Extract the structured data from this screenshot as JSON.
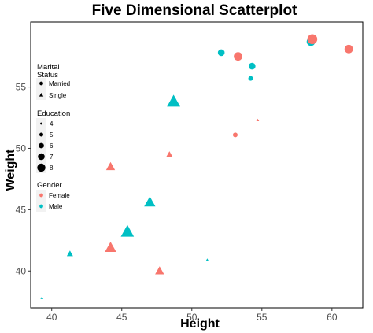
{
  "chart_data": {
    "type": "scatter",
    "title": "Five Dimensional Scatterplot",
    "xlabel": "Height",
    "ylabel": "Weight",
    "xlim": [
      38.5,
      62.2
    ],
    "ylim": [
      37.0,
      60.3
    ],
    "x_ticks": [
      40,
      45,
      50,
      55,
      60
    ],
    "y_ticks": [
      40,
      45,
      50,
      55
    ],
    "grid": false,
    "colors": {
      "Female": "#F8766D",
      "Male": "#00BFC4"
    },
    "legend": {
      "placement": "left",
      "marital": {
        "title_line1": "Marital",
        "title_line2": "Status",
        "items": [
          "Married",
          "Single"
        ]
      },
      "education": {
        "title": "Education",
        "items": [
          "4",
          "5",
          "6",
          "7",
          "8"
        ]
      },
      "gender": {
        "title": "Gender",
        "items": [
          "Female",
          "Male"
        ]
      }
    },
    "points": [
      {
        "x": 39.3,
        "y": 37.8,
        "gender": "Male",
        "status": "Single",
        "education": 4
      },
      {
        "x": 41.3,
        "y": 41.4,
        "gender": "Male",
        "status": "Single",
        "education": 5
      },
      {
        "x": 44.2,
        "y": 48.5,
        "gender": "Female",
        "status": "Single",
        "education": 6
      },
      {
        "x": 44.2,
        "y": 41.9,
        "gender": "Female",
        "status": "Single",
        "education": 7
      },
      {
        "x": 45.4,
        "y": 43.2,
        "gender": "Male",
        "status": "Single",
        "education": 8
      },
      {
        "x": 47.0,
        "y": 45.6,
        "gender": "Male",
        "status": "Single",
        "education": 7
      },
      {
        "x": 47.7,
        "y": 40.0,
        "gender": "Female",
        "status": "Single",
        "education": 6
      },
      {
        "x": 48.4,
        "y": 49.5,
        "gender": "Female",
        "status": "Single",
        "education": 5
      },
      {
        "x": 48.7,
        "y": 53.8,
        "gender": "Male",
        "status": "Single",
        "education": 8
      },
      {
        "x": 51.1,
        "y": 40.9,
        "gender": "Male",
        "status": "Single",
        "education": 4
      },
      {
        "x": 52.1,
        "y": 57.8,
        "gender": "Male",
        "status": "Married",
        "education": 6
      },
      {
        "x": 53.1,
        "y": 51.1,
        "gender": "Female",
        "status": "Married",
        "education": 5
      },
      {
        "x": 53.3,
        "y": 57.5,
        "gender": "Female",
        "status": "Married",
        "education": 7
      },
      {
        "x": 54.2,
        "y": 55.7,
        "gender": "Male",
        "status": "Married",
        "education": 5
      },
      {
        "x": 54.3,
        "y": 56.7,
        "gender": "Male",
        "status": "Married",
        "education": 6
      },
      {
        "x": 54.7,
        "y": 52.3,
        "gender": "Female",
        "status": "Single",
        "education": 4
      },
      {
        "x": 58.5,
        "y": 58.7,
        "gender": "Male",
        "status": "Married",
        "education": 7
      },
      {
        "x": 58.6,
        "y": 58.9,
        "gender": "Female",
        "status": "Married",
        "education": 8
      },
      {
        "x": 61.2,
        "y": 58.1,
        "gender": "Female",
        "status": "Married",
        "education": 7
      }
    ]
  }
}
